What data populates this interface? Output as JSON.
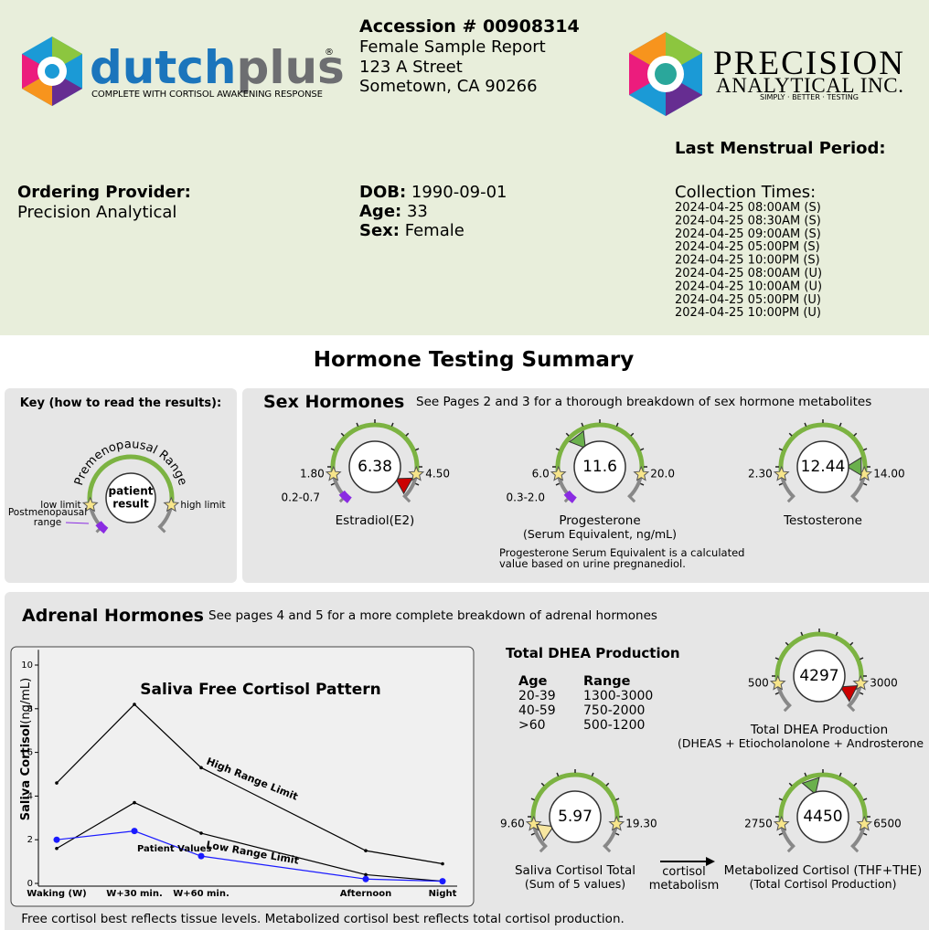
{
  "header": {
    "brand": "dutch",
    "brand_plus": "plus",
    "registered": "®",
    "tagline": "COMPLETE WITH CORTISOL AWAKENING RESPONSE",
    "accession": "Accession # 00908314",
    "report": "Female Sample Report",
    "address": [
      "123 A Street",
      "Sometown, CA 90266"
    ],
    "lab_name": "PRECISION",
    "lab_sub": "ANALYTICAL INC.",
    "lab_tagline": "SIMPLY · BETTER · TESTING"
  },
  "patient": {
    "provider_label": "Ordering Provider:",
    "provider": "Precision Analytical",
    "dob_label": "DOB:",
    "dob": "1990-09-01",
    "age_label": "Age:",
    "age": "33",
    "sex_label": "Sex:",
    "sex": "Female",
    "lmp_label": "Last Menstrual Period:",
    "collection_label": "Collection Times:",
    "collection_times": [
      "2024-04-25 08:00AM (S)",
      "2024-04-25 08:30AM (S)",
      "2024-04-25 09:00AM (S)",
      "2024-04-25 05:00PM (S)",
      "2024-04-25 10:00PM (S)",
      "2024-04-25 08:00AM (U)",
      "2024-04-25 10:00AM (U)",
      "2024-04-25 05:00PM (U)",
      "2024-04-25 10:00PM (U)"
    ]
  },
  "summary_title": "Hormone Testing Summary",
  "key": {
    "title": "Key (how to read the results):",
    "range": "Premenopausal Range",
    "low": "low limit",
    "result": [
      "patient",
      "result"
    ],
    "high": "high limit",
    "post": [
      "Postmenopausal",
      "range"
    ]
  },
  "sex_hormones": {
    "title": "Sex Hormones",
    "note": "See Pages 2 and 3 for a thorough breakdown of sex hormone metabolites",
    "gauges": [
      {
        "name": "Estradiol(E2)",
        "low": {
          "value": 1.8,
          "label": "1.80"
        },
        "high": {
          "value": 4.5,
          "label": "4.50"
        },
        "value": 6.38,
        "post_range": "0.2-0.7"
      },
      {
        "name": "Progesterone",
        "sub": "(Serum Equivalent, ng/mL)",
        "low": {
          "value": 6,
          "label": "6.0"
        },
        "high": {
          "value": 20,
          "label": "20.0"
        },
        "value": 11.6,
        "post_range": "0.3-2.0"
      },
      {
        "name": "Testosterone",
        "low": {
          "value": 2.3,
          "label": "2.30"
        },
        "high": {
          "value": 14,
          "label": "14.00"
        },
        "value": 12.44
      }
    ],
    "footnote": [
      "Progesterone Serum Equivalent is a calculated",
      "value based on urine pregnanediol."
    ]
  },
  "adrenal": {
    "title": "Adrenal Hormones",
    "note": "See pages 4 and 5 for a more complete breakdown of adrenal hormones",
    "chart": {
      "type": "line",
      "title": "Saliva Free Cortisol Pattern",
      "ylabel": "Saliva Cortisol",
      "yunit": "(ng/mL)",
      "categories": [
        "Waking (W)",
        "W+30 min.",
        "W+60 min.",
        "Afternoon",
        "Night"
      ],
      "series": [
        {
          "name": "High Range Limit",
          "color": "#000000",
          "values": [
            4.6,
            8.2,
            5.3,
            1.5,
            0.9
          ]
        },
        {
          "name": "Low Range Limit",
          "color": "#000000",
          "values": [
            1.6,
            3.7,
            2.3,
            0.4,
            0.1
          ]
        },
        {
          "name": "Patient Values",
          "color": "#1a1aff",
          "values": [
            2.0,
            2.4,
            1.25,
            0.2,
            0.1
          ]
        }
      ],
      "ylim": [
        0,
        10.7
      ],
      "yticks": [
        0,
        2,
        4,
        6,
        8,
        10
      ]
    },
    "dhea_table": {
      "title": "Total DHEA Production",
      "headers": [
        "Age",
        "Range"
      ],
      "rows": [
        [
          "20-39",
          "1300-3000"
        ],
        [
          "40-59",
          "750-2000"
        ],
        [
          ">60",
          "500-1200"
        ]
      ]
    },
    "gauges": [
      {
        "name": "Total DHEA Production",
        "sub": "(DHEAS + Etiocholanolone + Androsterone",
        "low": 500,
        "high": 3000,
        "value": 4297
      },
      {
        "name": "Saliva Cortisol Total",
        "sub": "(Sum of 5 values)",
        "low": {
          "value": 9.6,
          "label": "9.60"
        },
        "high": {
          "value": 19.3,
          "label": "19.30"
        },
        "value": 5.97
      },
      {
        "name": "Metabolized Cortisol (THF+THE)",
        "sub": "(Total Cortisol Production)",
        "low": 2750,
        "high": 6500,
        "value": 4450
      }
    ],
    "arrow_label": [
      "cortisol",
      "metabolism"
    ],
    "footer": "Free cortisol best reflects tissue levels. Metabolized cortisol best reflects total cortisol production."
  }
}
